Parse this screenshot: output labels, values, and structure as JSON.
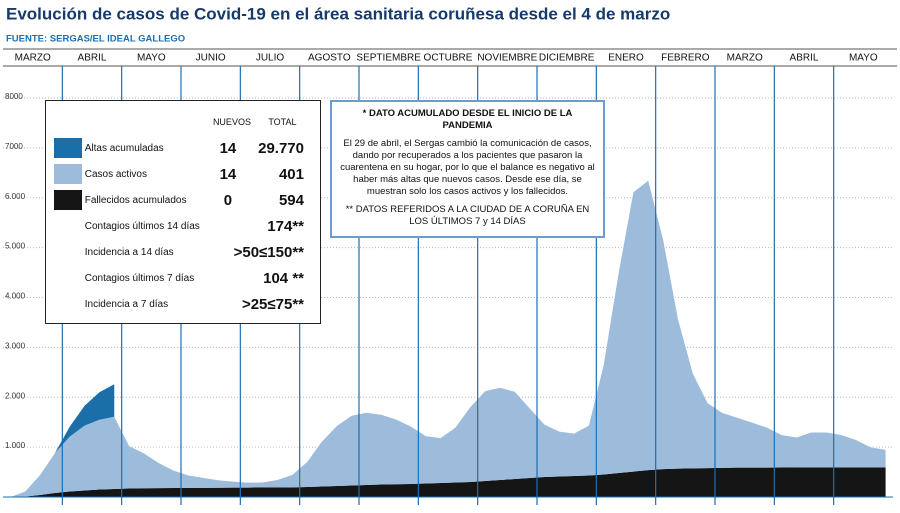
{
  "chart_data": {
    "type": "stacked_area",
    "title": "Evolución de casos de Covid-19 en el área sanitaria coruñesa desde el 4 de marzo",
    "subtitle": "FUENTE: SERGAS/EL IDEAL GALLEGO",
    "categories": [
      "MARZO",
      null,
      null,
      null,
      "ABRIL",
      null,
      null,
      null,
      "MAYO",
      null,
      null,
      null,
      "JUNIO",
      null,
      null,
      null,
      "JULIO",
      null,
      null,
      null,
      "AGOSTO",
      null,
      null,
      null,
      "SEPTIEMBRE",
      null,
      null,
      null,
      "OCTUBRE",
      null,
      null,
      null,
      "NOVIEMBRE",
      null,
      null,
      null,
      "DICIEMBRE",
      null,
      null,
      null,
      "ENERO",
      null,
      null,
      null,
      "FEBRERO",
      null,
      null,
      null,
      "MARZO",
      null,
      null,
      null,
      "ABRIL",
      null,
      null,
      null,
      "MAYO",
      null,
      null,
      null
    ],
    "series": [
      {
        "name": "Fallecidos acumulados",
        "color": "#151515",
        "values": [
          0,
          10,
          40,
          80,
          110,
          130,
          150,
          160,
          170,
          175,
          178,
          180,
          182,
          184,
          186,
          188,
          189,
          190,
          190,
          192,
          200,
          210,
          220,
          230,
          240,
          250,
          255,
          260,
          270,
          280,
          290,
          300,
          320,
          340,
          360,
          380,
          400,
          410,
          420,
          430,
          450,
          480,
          510,
          540,
          560,
          570,
          575,
          580,
          585,
          588,
          590,
          590,
          591,
          592,
          593,
          593,
          594,
          594,
          594,
          594
        ]
      },
      {
        "name": "Casos activos",
        "color": "#9dbcdc",
        "values": [
          0,
          100,
          400,
          800,
          1100,
          1300,
          1400,
          1450,
          850,
          700,
          500,
          350,
          250,
          200,
          150,
          120,
          100,
          100,
          150,
          250,
          500,
          900,
          1200,
          1400,
          1450,
          1400,
          1300,
          1150,
          950,
          900,
          1100,
          1500,
          1800,
          1850,
          1750,
          1400,
          1050,
          900,
          850,
          1000,
          2200,
          4000,
          5600,
          5800,
          4600,
          3000,
          1900,
          1300,
          1100,
          1000,
          900,
          800,
          650,
          600,
          700,
          700,
          650,
          550,
          400,
          350
        ]
      },
      {
        "name": "Altas acumuladas",
        "color": "#1a6fa8",
        "values": [
          0,
          0,
          0,
          0,
          200,
          400,
          550,
          650,
          null,
          null,
          null,
          null,
          null,
          null,
          null,
          null,
          null,
          null,
          null,
          null,
          null,
          null,
          null,
          null,
          null,
          null,
          null,
          null,
          null,
          null,
          null,
          null,
          null,
          null,
          null,
          null,
          null,
          null,
          null,
          null,
          null,
          null,
          null,
          null,
          null,
          null,
          null,
          null,
          null,
          null,
          null,
          null,
          null,
          null,
          null,
          null,
          null,
          null,
          null,
          null
        ]
      }
    ],
    "ylim": [
      0,
      8000
    ],
    "yticks": [
      {
        "value": 1000,
        "label": "1.000"
      },
      {
        "value": 2000,
        "label": "2.000"
      },
      {
        "value": 3000,
        "label": "3.000"
      },
      {
        "value": 4000,
        "label": "4.000"
      },
      {
        "value": 5000,
        "label": "5.000"
      },
      {
        "value": 6000,
        "label": "6.000"
      },
      7000,
      8000
    ],
    "grid": true,
    "summary": {
      "headers": [
        "NUEVOS",
        "TOTAL"
      ],
      "series_rows": [
        [
          "14",
          "401"
        ],
        [
          "14",
          "29.770"
        ]
      ],
      "fallecidos_row": [
        "0",
        "594"
      ],
      "extra_rows": [
        [
          "Contagios últimos 14 días",
          "174**"
        ],
        [
          "Incidencia a 14 días",
          ">50≤150**"
        ],
        [
          "Contagios últimos 7 días",
          "104 **"
        ],
        [
          "Incidencia a 7 días",
          ">25≤75**"
        ]
      ]
    },
    "note": {
      "title": "* DATO ACUMULADO DESDE EL INICIO DE LA PANDEMIA",
      "text": "El 29 de abril, el Sergas cambió la comunicación de casos, dando por recuperados a los pacientes que pasaron la cuarentena en su hogar, por lo que el balance es negativo al haber más altas que nuevos casos. Desde ese día, se muestran solo los casos activos y los fallecidos.",
      "footnote": "** DATOS REFERIDOS A LA CIUDAD DE A CORUÑA EN LOS ÚLTIMOS 7 y 14 DÍAS"
    }
  }
}
